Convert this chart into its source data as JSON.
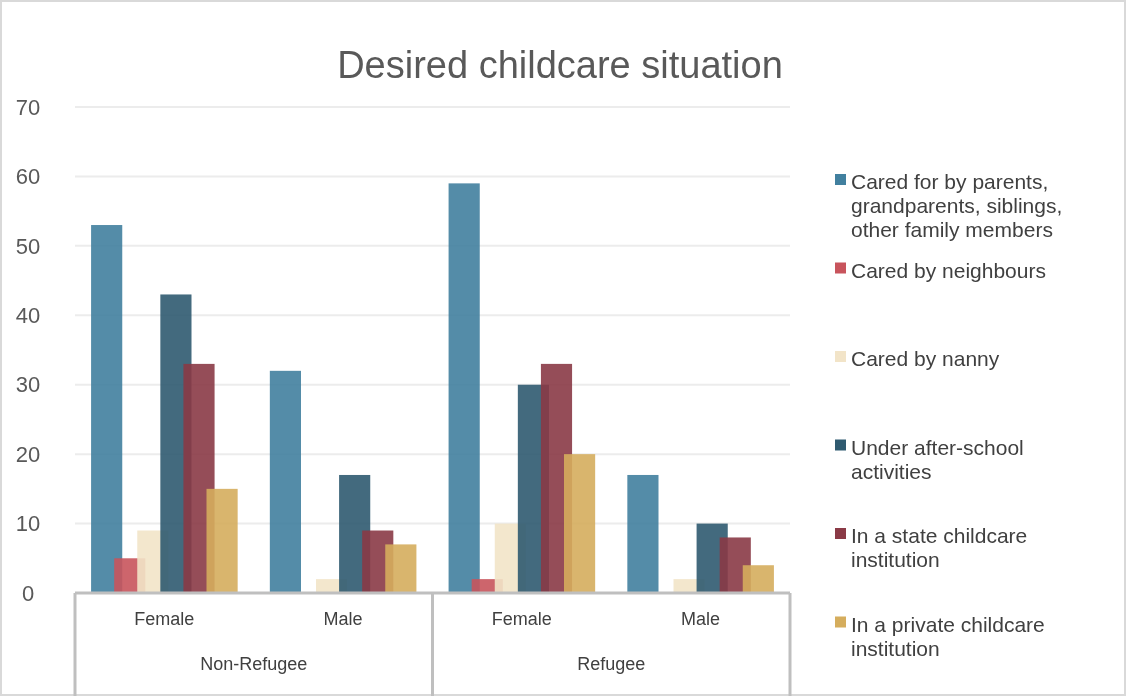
{
  "chart_data": {
    "type": "bar",
    "title": "Desired childcare situation",
    "categories": [
      "Female",
      "Male",
      "Female",
      "Male"
    ],
    "annotations": [
      "Non-Refugee",
      "Refugee"
    ],
    "series": [
      {
        "name": "Cared for by parents, grandparents, siblings, other family members",
        "color": "#41809f",
        "values": [
          53,
          32,
          59,
          17
        ]
      },
      {
        "name": "Cared by neighbours",
        "color": "#c8545c",
        "values": [
          5,
          null,
          2,
          null
        ]
      },
      {
        "name": "Cared by nanny",
        "color": "#f2e4c8",
        "values": [
          9,
          2,
          10,
          2
        ]
      },
      {
        "name": "Under after-school activities",
        "color": "#2f5a70",
        "values": [
          43,
          17,
          30,
          10
        ]
      },
      {
        "name": "In a state childcare institution",
        "color": "#8a3a46",
        "values": [
          33,
          9,
          33,
          8
        ]
      },
      {
        "name": "In a private childcare institution",
        "color": "#d5ad5d",
        "values": [
          15,
          7,
          20,
          4
        ]
      }
    ],
    "ylim": [
      0,
      70
    ],
    "yticks": [
      0,
      10,
      20,
      30,
      40,
      50,
      60,
      70
    ],
    "grid": "y",
    "legend": "right"
  }
}
